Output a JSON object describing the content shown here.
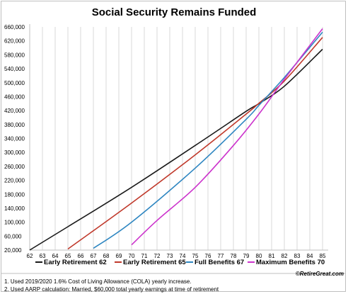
{
  "chart_data": {
    "type": "line",
    "title": "Social Security Remains Funded",
    "xlabel": "",
    "ylabel": "",
    "x": [
      62,
      63,
      64,
      65,
      66,
      67,
      68,
      69,
      70,
      71,
      72,
      73,
      74,
      75,
      76,
      77,
      78,
      79,
      80,
      81,
      82,
      83,
      84,
      85
    ],
    "xlim": [
      62,
      85
    ],
    "ylim": [
      20000,
      660000
    ],
    "y_ticks": [
      "20,000",
      "60,000",
      "100,000",
      "140,000",
      "180,000",
      "220,000",
      "260,000",
      "300,000",
      "340,000",
      "380,000",
      "420,000",
      "460,000",
      "500,000",
      "540,000",
      "580,000",
      "620,000",
      "660,000"
    ],
    "x_ticks": [
      "62",
      "63",
      "64",
      "65",
      "66",
      "67",
      "68",
      "69",
      "70",
      "71",
      "72",
      "73",
      "74",
      "75",
      "76",
      "77",
      "78",
      "79",
      "80",
      "81",
      "82",
      "83",
      "84",
      "85"
    ],
    "grid": "vertical",
    "legend_position": "bottom",
    "series": [
      {
        "name": "Early Retirement 62",
        "color": "#1a1a1a",
        "x": [
          62,
          65,
          70,
          75,
          79,
          80,
          82,
          85
        ],
        "y": [
          20000,
          87000,
          200000,
          320000,
          418000,
          440000,
          490000,
          596000
        ]
      },
      {
        "name": "Early Retirement 65",
        "color": "#c0392b",
        "x": [
          65,
          70,
          75,
          79,
          80,
          82,
          85
        ],
        "y": [
          23000,
          155000,
          293000,
          410000,
          441000,
          505000,
          630000
        ]
      },
      {
        "name": "Full  Benefits 67",
        "color": "#2e86c1",
        "x": [
          67,
          70,
          75,
          79,
          80,
          82,
          85
        ],
        "y": [
          25000,
          100000,
          255000,
          395000,
          435000,
          515000,
          645000
        ]
      },
      {
        "name": "Maximum  Benefits 70",
        "color": "#cc33cc",
        "x": [
          70,
          72,
          75,
          78,
          80,
          82,
          85
        ],
        "y": [
          35000,
          105000,
          200000,
          320000,
          410000,
          510000,
          655000
        ]
      }
    ]
  },
  "brand": "©RetireGreat.com",
  "footnotes": [
    "1. Used 2019/2020 1.6% Cost of Living Allowance (COLA) yearly increase.",
    "2. Used AARP calculation: Married, $60,000 total yearly earnings at time of retirement"
  ]
}
